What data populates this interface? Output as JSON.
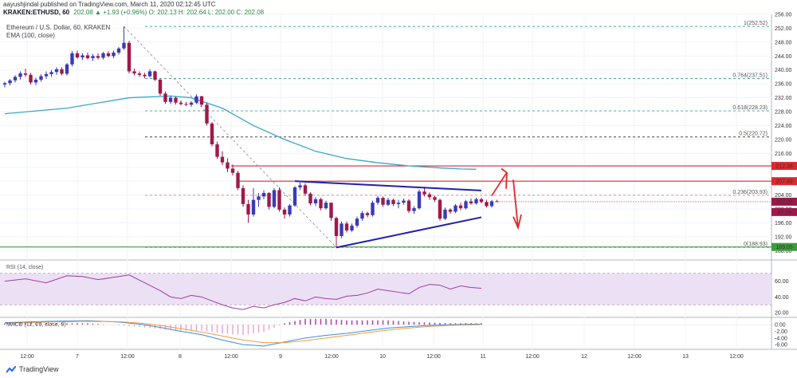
{
  "header": {
    "publisher_line": "aayushjindal published on TradingView.com, March 11, 2020 02:12:45 UTC",
    "symbol_line_symbol": "KRAKEN:ETHUSD, 60",
    "symbol_line_values": "202.08 ▲ +1.93 (+0.96%) O: 202.13 H: 202.64 L: 202.00 C: 202.08",
    "legend_main": "Ethereum / U.S. Dollar, 60, KRAKEN",
    "legend_ema": "EMA (100, close)"
  },
  "brand": {
    "name": "TradingView"
  },
  "colors": {
    "up": "#3a3ab8",
    "down": "#a0184a",
    "ema": "#3ba7c9",
    "fib_dash": "#2e9e8e",
    "level_red": "#e0282e",
    "level_green": "#3c9e3c",
    "trend_blue": "#1f1fb0",
    "rsi_line": "#9b3fa0",
    "rsi_band": "#ece0f4",
    "macd_line": "#3b8fd8",
    "signal_line": "#f39c3c",
    "hist_up": "#b03ea6",
    "hist_down": "#e8a5d6",
    "arrow_red": "#e0282e"
  },
  "chart_data": [
    {
      "type": "candlestick",
      "title": "Ethereum / U.S. Dollar, 60, KRAKEN",
      "ylim": [
        186,
        256
      ],
      "y_ticks": [
        "256.00",
        "252.00",
        "248.00",
        "244.00",
        "240.00",
        "236.00",
        "232.00",
        "228.00",
        "224.00",
        "220.00",
        "216.00",
        "212.00",
        "208.00",
        "204.00",
        "200.00",
        "196.00",
        "192.00",
        "188.00"
      ],
      "x_ticks": [
        "12:00",
        "7",
        "12:00",
        "8",
        "12:00",
        "9",
        "12:00",
        "10",
        "12:00",
        "11",
        "12:00",
        "12",
        "12:00",
        "13",
        "12:00"
      ],
      "ohlc": [
        [
          235.8,
          236.6,
          235.0,
          236.2
        ],
        [
          236.2,
          237.4,
          235.6,
          237.0
        ],
        [
          237.0,
          238.5,
          236.4,
          238.0
        ],
        [
          238.0,
          239.6,
          237.2,
          239.0
        ],
        [
          239.0,
          240.4,
          238.0,
          238.6
        ],
        [
          238.6,
          239.2,
          235.8,
          236.4
        ],
        [
          236.4,
          237.8,
          235.6,
          237.2
        ],
        [
          237.2,
          238.8,
          236.6,
          238.2
        ],
        [
          238.2,
          239.6,
          237.4,
          238.8
        ],
        [
          238.8,
          240.0,
          238.0,
          239.4
        ],
        [
          239.4,
          240.8,
          238.6,
          240.2
        ],
        [
          240.2,
          240.8,
          238.4,
          238.9
        ],
        [
          238.9,
          242.0,
          238.4,
          241.6
        ],
        [
          241.6,
          245.4,
          241.0,
          244.8
        ],
        [
          244.8,
          245.6,
          243.2,
          243.6
        ],
        [
          243.6,
          244.8,
          242.8,
          244.2
        ],
        [
          244.2,
          245.0,
          243.0,
          243.4
        ],
        [
          243.4,
          244.6,
          242.6,
          244.0
        ],
        [
          244.0,
          244.8,
          243.0,
          243.5
        ],
        [
          243.5,
          245.2,
          243.0,
          244.8
        ],
        [
          244.8,
          245.4,
          243.6,
          244.0
        ],
        [
          244.0,
          245.6,
          243.4,
          245.0
        ],
        [
          245.0,
          246.6,
          244.4,
          246.2
        ],
        [
          246.2,
          252.5,
          245.8,
          247.8
        ],
        [
          247.8,
          248.4,
          239.0,
          239.6
        ],
        [
          239.6,
          240.4,
          238.4,
          239.0
        ],
        [
          239.0,
          239.6,
          238.0,
          238.6
        ],
        [
          238.6,
          239.2,
          237.6,
          238.2
        ],
        [
          238.2,
          240.2,
          237.8,
          239.6
        ],
        [
          239.6,
          239.8,
          236.8,
          237.2
        ],
        [
          237.2,
          237.6,
          232.6,
          233.2
        ],
        [
          233.2,
          233.8,
          230.2,
          230.8
        ],
        [
          230.8,
          232.6,
          230.2,
          232.0
        ],
        [
          232.0,
          232.4,
          230.0,
          230.6
        ],
        [
          230.6,
          231.2,
          229.8,
          230.2
        ],
        [
          230.2,
          230.8,
          229.6,
          230.0
        ],
        [
          230.0,
          231.0,
          229.4,
          230.6
        ],
        [
          230.6,
          233.0,
          230.2,
          232.4
        ],
        [
          232.4,
          232.6,
          229.4,
          230.0
        ],
        [
          230.0,
          230.6,
          224.0,
          224.6
        ],
        [
          224.6,
          225.0,
          218.0,
          218.6
        ],
        [
          218.6,
          219.4,
          214.4,
          215.0
        ],
        [
          215.0,
          216.6,
          212.6,
          213.4
        ],
        [
          213.4,
          214.6,
          210.6,
          211.6
        ],
        [
          211.6,
          212.8,
          209.6,
          210.4
        ],
        [
          210.4,
          211.0,
          205.4,
          206.0
        ],
        [
          206.0,
          206.8,
          200.6,
          201.4
        ],
        [
          201.4,
          202.6,
          196.0,
          198.4
        ],
        [
          198.4,
          206.0,
          197.8,
          202.6
        ],
        [
          202.6,
          204.6,
          200.6,
          203.6
        ],
        [
          203.6,
          205.4,
          202.8,
          204.6
        ],
        [
          204.6,
          204.8,
          199.8,
          200.6
        ],
        [
          200.6,
          206.0,
          200.2,
          205.4
        ],
        [
          205.4,
          206.2,
          199.2,
          199.8
        ],
        [
          199.8,
          200.4,
          197.2,
          198.4
        ],
        [
          198.4,
          201.4,
          197.8,
          201.0
        ],
        [
          201.0,
          206.6,
          200.6,
          206.2
        ],
        [
          206.2,
          207.6,
          205.4,
          206.8
        ],
        [
          206.8,
          207.4,
          203.8,
          204.4
        ],
        [
          204.4,
          204.8,
          201.0,
          201.6
        ],
        [
          201.6,
          203.4,
          200.8,
          202.8
        ],
        [
          202.8,
          203.2,
          199.6,
          200.2
        ],
        [
          200.2,
          202.4,
          199.8,
          201.8
        ],
        [
          201.8,
          201.6,
          196.6,
          197.4
        ],
        [
          197.4,
          197.8,
          189.0,
          192.2
        ],
        [
          192.2,
          196.4,
          191.6,
          195.8
        ],
        [
          195.8,
          196.4,
          193.2,
          193.8
        ],
        [
          193.8,
          195.8,
          193.4,
          195.2
        ],
        [
          195.2,
          197.8,
          194.6,
          197.2
        ],
        [
          197.2,
          199.4,
          196.6,
          198.8
        ],
        [
          198.8,
          199.2,
          197.6,
          198.2
        ],
        [
          198.2,
          202.4,
          197.8,
          201.8
        ],
        [
          201.8,
          203.8,
          201.2,
          203.2
        ],
        [
          203.2,
          203.6,
          200.6,
          201.2
        ],
        [
          201.2,
          203.2,
          200.8,
          202.6
        ],
        [
          202.6,
          203.0,
          200.8,
          201.4
        ],
        [
          201.4,
          202.6,
          200.2,
          201.8
        ],
        [
          201.8,
          203.0,
          201.2,
          202.4
        ],
        [
          202.4,
          202.8,
          198.8,
          199.4
        ],
        [
          199.4,
          200.8,
          198.6,
          200.2
        ],
        [
          200.2,
          205.6,
          199.8,
          205.0
        ],
        [
          205.0,
          206.4,
          203.6,
          204.2
        ],
        [
          204.2,
          204.8,
          202.6,
          203.4
        ],
        [
          203.4,
          203.8,
          202.0,
          202.6
        ],
        [
          202.6,
          203.0,
          196.6,
          197.2
        ],
        [
          197.2,
          200.4,
          196.8,
          199.8
        ],
        [
          199.8,
          200.2,
          198.6,
          199.2
        ],
        [
          199.2,
          201.4,
          198.8,
          201.0
        ],
        [
          201.0,
          201.8,
          199.6,
          200.2
        ],
        [
          200.2,
          202.6,
          199.8,
          202.2
        ],
        [
          202.2,
          203.0,
          201.2,
          201.6
        ],
        [
          201.6,
          203.2,
          201.2,
          202.8
        ],
        [
          202.8,
          203.2,
          201.6,
          202.0
        ],
        [
          202.0,
          202.6,
          200.4,
          200.8
        ],
        [
          200.8,
          202.6,
          200.4,
          202.2
        ],
        [
          202.2,
          202.64,
          202.0,
          202.08
        ]
      ],
      "ema_100": [
        [
          0,
          227.4
        ],
        [
          12,
          229.0
        ],
        [
          24,
          232.0
        ],
        [
          32,
          232.5
        ],
        [
          36,
          232.0
        ],
        [
          42,
          229.0
        ],
        [
          48,
          224.0
        ],
        [
          54,
          220.0
        ],
        [
          60,
          216.6
        ],
        [
          66,
          214.5
        ],
        [
          72,
          213.3
        ],
        [
          78,
          212.4
        ],
        [
          84,
          211.8
        ],
        [
          88,
          211.5
        ],
        [
          91,
          211.4
        ]
      ],
      "fib_levels": [
        {
          "label": "1(252.52)",
          "value": 252.52
        },
        {
          "label": "0.764(237.51)",
          "value": 237.51
        },
        {
          "label": "0.618(228.23)",
          "value": 228.23
        },
        {
          "label": "0.5(220.72)",
          "value": 220.72
        },
        {
          "label": "0.236(203.93)",
          "value": 203.93
        },
        {
          "label": "0(188.93)",
          "value": 188.93
        }
      ],
      "horizontal_levels": [
        {
          "value": 212.38,
          "label": "212.38",
          "color": "red"
        },
        {
          "value": 207.99,
          "label": "207.99",
          "color": "red"
        },
        {
          "value": 189.05,
          "label": "189.05",
          "color": "green"
        }
      ],
      "price_labels": [
        {
          "value": 202.08,
          "label": "202.08"
        },
        {
          "value": 199.8,
          "label": "47:19"
        }
      ],
      "trendlines": [
        {
          "from": [
            56,
            208.0
          ],
          "to": [
            92,
            205.3
          ],
          "note": "upper triangle line"
        },
        {
          "from": [
            64,
            188.9
          ],
          "to": [
            92,
            197.6
          ],
          "note": "lower triangle line"
        }
      ]
    },
    {
      "type": "line",
      "title": "RSI (14, close)",
      "ylim": [
        15,
        85
      ],
      "y_ticks": [
        "60.00",
        "40.00",
        "20.00"
      ],
      "band": [
        30,
        70
      ],
      "values": [
        [
          0,
          60
        ],
        [
          4,
          63
        ],
        [
          8,
          58
        ],
        [
          12,
          67
        ],
        [
          15,
          66
        ],
        [
          18,
          62
        ],
        [
          21,
          65
        ],
        [
          24,
          68
        ],
        [
          27,
          58
        ],
        [
          30,
          48
        ],
        [
          32,
          40
        ],
        [
          34,
          38
        ],
        [
          36,
          42
        ],
        [
          38,
          40
        ],
        [
          40,
          35
        ],
        [
          42,
          30
        ],
        [
          44,
          26
        ],
        [
          46,
          24
        ],
        [
          48,
          28
        ],
        [
          50,
          26
        ],
        [
          52,
          30
        ],
        [
          54,
          33
        ],
        [
          56,
          38
        ],
        [
          58,
          35
        ],
        [
          60,
          40
        ],
        [
          62,
          38
        ],
        [
          64,
          37
        ],
        [
          66,
          41
        ],
        [
          68,
          42
        ],
        [
          70,
          45
        ],
        [
          72,
          50
        ],
        [
          74,
          48
        ],
        [
          76,
          46
        ],
        [
          78,
          44
        ],
        [
          80,
          52
        ],
        [
          82,
          56
        ],
        [
          84,
          55
        ],
        [
          86,
          50
        ],
        [
          88,
          54
        ],
        [
          90,
          52
        ],
        [
          92,
          51
        ]
      ]
    },
    {
      "type": "line",
      "title": "MACD (12, 26, close, 9)",
      "ylim": [
        -7.4,
        2.2
      ],
      "y_ticks": [
        "0.00",
        "-2.00",
        "-4.00",
        "-6.00"
      ],
      "macd": [
        [
          0,
          0.6
        ],
        [
          8,
          1.0
        ],
        [
          16,
          1.2
        ],
        [
          22,
          0.8
        ],
        [
          26,
          0.2
        ],
        [
          30,
          -0.8
        ],
        [
          34,
          -2.0
        ],
        [
          38,
          -3.0
        ],
        [
          42,
          -4.6
        ],
        [
          46,
          -6.0
        ],
        [
          50,
          -6.4
        ],
        [
          54,
          -5.2
        ],
        [
          58,
          -4.0
        ],
        [
          62,
          -3.2
        ],
        [
          66,
          -2.6
        ],
        [
          70,
          -1.8
        ],
        [
          74,
          -1.0
        ],
        [
          78,
          -0.6
        ],
        [
          82,
          -0.2
        ],
        [
          86,
          0.0
        ],
        [
          92,
          0.2
        ]
      ],
      "signal": [
        [
          0,
          0.4
        ],
        [
          8,
          0.8
        ],
        [
          16,
          1.0
        ],
        [
          22,
          0.9
        ],
        [
          26,
          0.5
        ],
        [
          30,
          -0.2
        ],
        [
          34,
          -1.2
        ],
        [
          38,
          -2.2
        ],
        [
          42,
          -3.4
        ],
        [
          46,
          -4.6
        ],
        [
          50,
          -5.4
        ],
        [
          54,
          -5.4
        ],
        [
          58,
          -4.8
        ],
        [
          62,
          -4.0
        ],
        [
          66,
          -3.2
        ],
        [
          70,
          -2.4
        ],
        [
          74,
          -1.6
        ],
        [
          78,
          -1.0
        ],
        [
          82,
          -0.5
        ],
        [
          86,
          -0.2
        ],
        [
          92,
          0.0
        ]
      ]
    }
  ]
}
